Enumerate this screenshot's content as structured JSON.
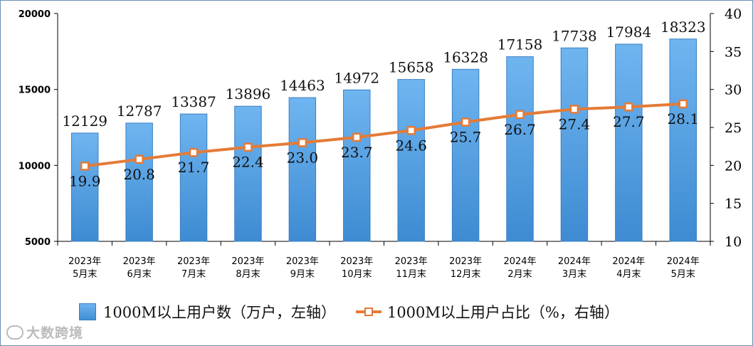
{
  "chart_data": {
    "type": "bar+line",
    "categories": [
      [
        "2023年",
        "5月末"
      ],
      [
        "2023年",
        "6月末"
      ],
      [
        "2023年",
        "7月末"
      ],
      [
        "2023年",
        "8月末"
      ],
      [
        "2023年",
        "9月末"
      ],
      [
        "2023年",
        "10月末"
      ],
      [
        "2023年",
        "11月末"
      ],
      [
        "2023年",
        "12月末"
      ],
      [
        "2024年",
        "2月末"
      ],
      [
        "2024年",
        "3月末"
      ],
      [
        "2024年",
        "4月末"
      ],
      [
        "2024年",
        "5月末"
      ]
    ],
    "series": [
      {
        "name": "1000M以上用户数（万户，左轴）",
        "type": "bar",
        "axis": "left",
        "color": "#4a97dd",
        "values": [
          12129,
          12787,
          13387,
          13896,
          14463,
          14972,
          15658,
          16328,
          17158,
          17738,
          17984,
          18323
        ]
      },
      {
        "name": "1000M以上用户占比（%，右轴）",
        "type": "line",
        "axis": "right",
        "color": "#e47b38",
        "values": [
          19.9,
          20.8,
          21.7,
          22.4,
          23.0,
          23.7,
          24.6,
          25.7,
          26.7,
          27.4,
          27.7,
          28.1
        ]
      }
    ],
    "left_axis": {
      "ylim": [
        5000,
        20000
      ],
      "ticks": [
        5000,
        10000,
        15000,
        20000
      ]
    },
    "right_axis": {
      "ylim": [
        10,
        40
      ],
      "ticks": [
        10,
        15,
        20,
        25,
        30,
        35,
        40
      ]
    },
    "legend": "bottom"
  },
  "watermark": "大数跨境"
}
